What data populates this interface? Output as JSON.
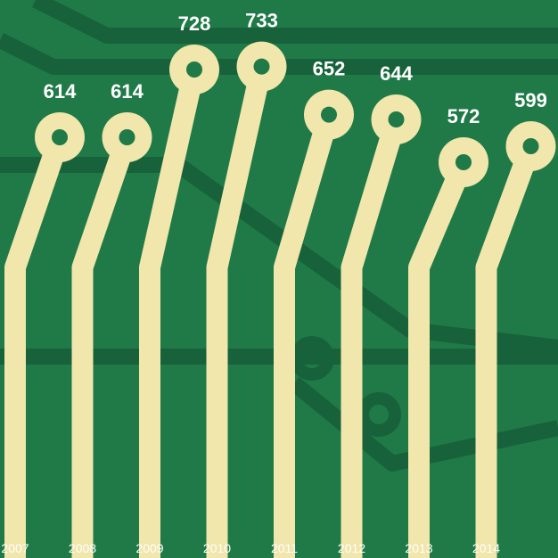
{
  "colors": {
    "board": "#1f7a48",
    "board_trace": "#17623a",
    "pad": "#f1e6ab",
    "label": "#ffffff"
  },
  "chart_data": {
    "type": "line",
    "categories": [
      "2007",
      "2008",
      "2009",
      "2010",
      "2011",
      "2012",
      "2013",
      "2014"
    ],
    "values": [
      614,
      614,
      728,
      733,
      652,
      644,
      572,
      599
    ],
    "title": "",
    "xlabel": "",
    "ylabel": "",
    "ylim": [
      560,
      740
    ],
    "grid": false,
    "legend": "none"
  }
}
